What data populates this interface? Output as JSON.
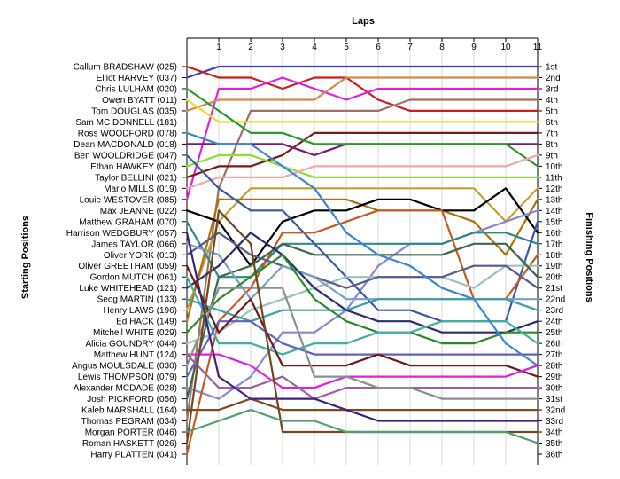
{
  "chart_data": {
    "type": "line",
    "title": "",
    "xlabel": "Laps",
    "ylabel_left": "Starting Positions",
    "ylabel_right": "Finishing Positions",
    "x": [
      0,
      1,
      2,
      3,
      4,
      5,
      6,
      7,
      8,
      9,
      10,
      11
    ],
    "x_tick_labels": [
      "1",
      "2",
      "3",
      "4",
      "5",
      "6",
      "7",
      "8",
      "9",
      "10",
      "11"
    ],
    "y_reversed": true,
    "grid": "vertical",
    "starting_labels": [
      "Callum BRADSHAW (025)",
      "Elliot HARVEY (037)",
      "Chris LULHAM (020)",
      "Owen BYATT (011)",
      "Tom DOUGLAS (035)",
      "Sam MC DONNELL (181)",
      "Ross WOODFORD (078)",
      "Dean MACDONALD (018)",
      "Ben WOOLDRIDGE (047)",
      "Ethan HAWKEY (040)",
      "Taylor BELLINI (021)",
      "Mario MILLS (019)",
      "Louie WESTOVER (085)",
      "Max JEANNE (022)",
      "Matthew GRAHAM (070)",
      "Harrison WEDGBURY (057)",
      "James TAYLOR (066)",
      "Oliver YORK (013)",
      "Oliver GREETHAM (059)",
      "Gordon MUTCH (061)",
      "Luke WHITEHEAD (121)",
      "Seog MARTIN (133)",
      "Henry LAWS (196)",
      "Ed HACK (149)",
      "Mitchell WHITE (029)",
      "Alicia GOUNDRY (044)",
      "Matthew HUNT (124)",
      "Angus MOULSDALE (030)",
      "Lewis THOMPSON (079)",
      "Alexander MCDADE (028)",
      "Josh PICKFORD (056)",
      "Kaleb MARSHALL (164)",
      "Thomas PEGRAM (034)",
      "Morgan PORTER (046)",
      "Roman HASKETT (026)",
      "Harry PLATTEN (041)"
    ],
    "finishing_labels": [
      "1st",
      "2nd",
      "3rd",
      "4th",
      "5th",
      "6th",
      "7th",
      "8th",
      "9th",
      "10th",
      "11th",
      "12th",
      "13th",
      "14th",
      "15th",
      "16th",
      "17th",
      "18th",
      "19th",
      "20th",
      "21st",
      "22nd",
      "23rd",
      "24th",
      "25th",
      "26th",
      "27th",
      "28th",
      "29th",
      "30th",
      "31st",
      "32nd",
      "33rd",
      "34th",
      "35th",
      "36th"
    ],
    "series": [
      {
        "color": "#3b3bc8",
        "values": [
          2,
          1,
          1,
          1,
          1,
          1,
          1,
          1,
          1,
          1,
          1,
          1
        ]
      },
      {
        "color": "#c81e1e",
        "values": [
          1,
          2,
          2,
          3,
          2,
          2,
          4,
          5,
          5,
          5,
          5,
          5
        ]
      },
      {
        "color": "#e01ee0",
        "values": [
          13,
          3,
          3,
          2,
          3,
          4,
          3,
          3,
          3,
          3,
          3,
          3
        ]
      },
      {
        "color": "#d08a4a",
        "values": [
          5,
          4,
          4,
          4,
          4,
          2,
          2,
          2,
          2,
          2,
          2,
          2
        ]
      },
      {
        "color": "#a07060",
        "values": [
          33,
          12,
          5,
          5,
          5,
          5,
          5,
          4,
          4,
          4,
          4,
          4
        ]
      },
      {
        "color": "#e8e020",
        "values": [
          4,
          6,
          6,
          6,
          6,
          6,
          6,
          6,
          6,
          6,
          6,
          6
        ]
      },
      {
        "color": "#7a1a1a",
        "values": [
          11,
          10,
          10,
          9,
          7,
          7,
          7,
          7,
          7,
          7,
          7,
          7
        ]
      },
      {
        "color": "#7a1a7a",
        "values": [
          8,
          8,
          8,
          8,
          9,
          8,
          8,
          8,
          8,
          8,
          8,
          8
        ]
      },
      {
        "color": "#2a9a2a",
        "values": [
          3,
          5,
          7,
          7,
          8,
          8,
          8,
          8,
          8,
          8,
          8,
          10
        ]
      },
      {
        "color": "#8ae03a",
        "values": [
          10,
          9,
          9,
          10,
          11,
          11,
          11,
          11,
          11,
          11,
          11,
          11
        ]
      },
      {
        "color": "#f0a8a8",
        "values": [
          12,
          11,
          11,
          11,
          10,
          10,
          10,
          10,
          10,
          10,
          10,
          9
        ]
      },
      {
        "color": "#c8a030",
        "values": [
          23,
          15,
          12,
          12,
          12,
          12,
          12,
          12,
          12,
          12,
          15,
          12
        ]
      },
      {
        "color": "#b07010",
        "values": [
          24,
          13,
          13,
          13,
          13,
          13,
          14,
          14,
          14,
          15,
          18,
          13
        ]
      },
      {
        "color": "#000000",
        "values": [
          14,
          15,
          19,
          15,
          14,
          14,
          13,
          13,
          14,
          14,
          12,
          16
        ]
      },
      {
        "color": "#8888d8",
        "values": [
          30,
          31,
          29,
          25,
          25,
          23,
          19,
          17,
          17,
          16,
          15,
          14
        ]
      },
      {
        "color": "#2a8a8a",
        "values": [
          15,
          20,
          20,
          17,
          17,
          17,
          17,
          17,
          17,
          16,
          16,
          17
        ]
      },
      {
        "color": "#3a5aa0",
        "values": [
          9,
          12,
          14,
          14,
          17,
          20,
          23,
          23,
          24,
          24,
          24,
          15
        ]
      },
      {
        "color": "#c85a20",
        "values": [
          36,
          24,
          21,
          16,
          16,
          15,
          14,
          14,
          14,
          22,
          22,
          18
        ]
      },
      {
        "color": "#a0c0c0",
        "values": [
          26,
          25,
          23,
          22,
          21,
          20,
          20,
          20,
          20,
          21,
          19,
          19
        ]
      },
      {
        "color": "#3a6a4a",
        "values": [
          31,
          20,
          19,
          17,
          18,
          18,
          18,
          18,
          18,
          17,
          17,
          20
        ]
      },
      {
        "color": "#5a5a8a",
        "values": [
          18,
          16,
          18,
          19,
          20,
          21,
          20,
          20,
          20,
          19,
          19,
          21
        ]
      },
      {
        "color": "#7aa0c0",
        "values": [
          17,
          18,
          22,
          19,
          20,
          22,
          22,
          22,
          22,
          22,
          22,
          22
        ]
      },
      {
        "color": "#3aa0a0",
        "values": [
          22,
          23,
          24,
          23,
          23,
          23,
          22,
          22,
          22,
          22,
          22,
          23
        ]
      },
      {
        "color": "#2e2e6e",
        "values": [
          21,
          19,
          16,
          18,
          21,
          23,
          24,
          24,
          25,
          25,
          25,
          24
        ]
      },
      {
        "color": "#2a8a2a",
        "values": [
          25,
          22,
          20,
          18,
          22,
          24,
          25,
          25,
          26,
          26,
          25,
          25
        ]
      },
      {
        "color": "#40b0a0",
        "values": [
          20,
          26,
          26,
          27,
          26,
          26,
          25,
          25,
          24,
          24,
          24,
          26
        ]
      },
      {
        "color": "#6060c0",
        "values": [
          29,
          24,
          24,
          26,
          27,
          27,
          27,
          27,
          27,
          27,
          27,
          27
        ]
      },
      {
        "color": "#3a88d0",
        "values": [
          7,
          8,
          8,
          10,
          12,
          16,
          18,
          19,
          21,
          22,
          26,
          28
        ]
      },
      {
        "color": "#701818",
        "values": [
          19,
          25,
          22,
          28,
          28,
          28,
          27,
          28,
          28,
          28,
          28,
          29
        ]
      },
      {
        "color": "#e020e0",
        "values": [
          27,
          27,
          28,
          30,
          30,
          29,
          29,
          29,
          29,
          29,
          29,
          28
        ]
      },
      {
        "color": "#a060a0",
        "values": [
          27,
          30,
          30,
          29,
          31,
          30,
          30,
          30,
          30,
          30,
          30,
          30
        ]
      },
      {
        "color": "#8a9090",
        "values": [
          28,
          21,
          21,
          21,
          29,
          29,
          30,
          30,
          31,
          31,
          31,
          31
        ]
      },
      {
        "color": "#804a20",
        "values": [
          32,
          32,
          31,
          32,
          32,
          32,
          32,
          32,
          32,
          32,
          32,
          32
        ]
      },
      {
        "color": "#402080",
        "values": [
          16,
          29,
          31,
          31,
          31,
          32,
          33,
          33,
          33,
          33,
          33,
          33
        ]
      },
      {
        "color": "#6e4820",
        "values": [
          35,
          14,
          17,
          34,
          34,
          34,
          34,
          34,
          34,
          34,
          34,
          34
        ]
      },
      {
        "color": "#50a070",
        "values": [
          34,
          33,
          32,
          33,
          33,
          34,
          34,
          34,
          34,
          34,
          34,
          35
        ]
      }
    ]
  }
}
